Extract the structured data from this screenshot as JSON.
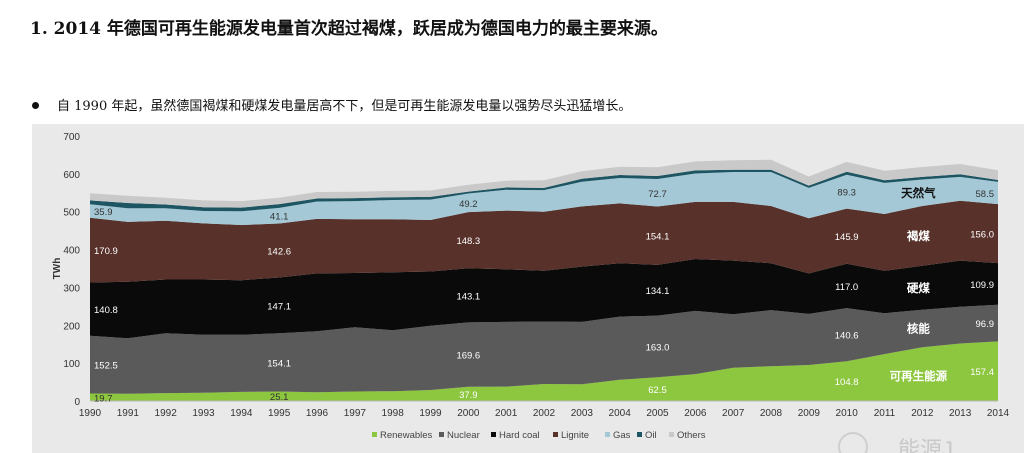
{
  "page": {
    "heading": "1. 2014 年德国可再生能源发电量首次超过褐煤，跃居成为德国电力的最主要来源。",
    "bullet": "自 1990 年起，虽然德国褐煤和硬煤发电量居高不下，但是可再生能源发电量以强势尽头迅猛增长。",
    "watermark": "能源J"
  },
  "chart_data": {
    "type": "area",
    "stacked": true,
    "ylabel": "TWh",
    "xlabel": "",
    "ylim": [
      0,
      700
    ],
    "yticks": [
      0,
      100,
      200,
      300,
      400,
      500,
      600,
      700
    ],
    "x": [
      "1990",
      "1991",
      "1992",
      "1993",
      "1994",
      "1995",
      "1996",
      "1997",
      "1998",
      "1999",
      "2000",
      "2001",
      "2002",
      "2003",
      "2004",
      "2005",
      "2006",
      "2007",
      "2008",
      "2009",
      "2010",
      "2011",
      "2012",
      "2013",
      "2014"
    ],
    "series": [
      {
        "name": "Renewables",
        "color": "#8dc63f",
        "values": [
          19.7,
          19,
          21,
          22,
          24,
          25.1,
          23,
          25,
          26,
          29,
          37.9,
          38,
          45,
          44,
          56,
          62.5,
          71,
          88,
          92,
          95,
          104.8,
          124,
          142,
          152,
          157.4
        ]
      },
      {
        "name": "Nuclear",
        "color": "#5a5a5a",
        "values": [
          152.5,
          147,
          158,
          153,
          151,
          154.1,
          161,
          170,
          161,
          170,
          169.6,
          171,
          165,
          165,
          167,
          163.0,
          167,
          141,
          148,
          135,
          140.6,
          108,
          99,
          97,
          96.9
        ]
      },
      {
        "name": "Hard coal",
        "color": "#0a0a0a",
        "values": [
          140.8,
          149,
          142,
          146,
          144,
          147.1,
          153,
          143,
          153,
          143,
          143.1,
          139,
          134,
          146,
          141,
          134.1,
          137,
          142,
          124,
          107,
          117.0,
          112,
          116,
          122,
          109.9
        ]
      },
      {
        "name": "Lignite",
        "color": "#57312a",
        "values": [
          170.9,
          158,
          155,
          148,
          146,
          142.6,
          144,
          142,
          140,
          136,
          148.3,
          155,
          156,
          159,
          158,
          154.1,
          151,
          155,
          151,
          146,
          145.9,
          150,
          158,
          158,
          156.0
        ]
      },
      {
        "name": "Gas",
        "color": "#a4c8d6",
        "values": [
          35.9,
          36,
          33,
          33,
          36,
          41.1,
          46,
          48,
          51,
          54,
          49.2,
          55,
          57,
          65,
          67,
          72.7,
          75,
          79,
          90,
          80,
          89.3,
          82,
          70,
          63,
          58.5
        ]
      },
      {
        "name": "Oil",
        "color": "#1e5563",
        "values": [
          10,
          14,
          10,
          10,
          10,
          10,
          8,
          8,
          7,
          7,
          5,
          6,
          6,
          8,
          8,
          8,
          8,
          6,
          6,
          6,
          8,
          7,
          7,
          7,
          5
        ]
      },
      {
        "name": "Others",
        "color": "#c9c9c9",
        "values": [
          19,
          19,
          18,
          18,
          17,
          17,
          17,
          17,
          17,
          17,
          18,
          18,
          20,
          20,
          22,
          23,
          24,
          25,
          26,
          24,
          26,
          25,
          26,
          27,
          26
        ]
      }
    ],
    "value_labels": [
      {
        "series": "Renewables",
        "year": "1990",
        "text": "19.7"
      },
      {
        "series": "Renewables",
        "year": "1995",
        "text": "25.1"
      },
      {
        "series": "Renewables",
        "year": "2000",
        "text": "37.9"
      },
      {
        "series": "Renewables",
        "year": "2005",
        "text": "62.5"
      },
      {
        "series": "Renewables",
        "year": "2010",
        "text": "104.8"
      },
      {
        "series": "Renewables",
        "year": "2014",
        "text": "157.4"
      },
      {
        "series": "Nuclear",
        "year": "1990",
        "text": "152.5"
      },
      {
        "series": "Nuclear",
        "year": "1995",
        "text": "154.1"
      },
      {
        "series": "Nuclear",
        "year": "2000",
        "text": "169.6"
      },
      {
        "series": "Nuclear",
        "year": "2005",
        "text": "163.0"
      },
      {
        "series": "Nuclear",
        "year": "2010",
        "text": "140.6"
      },
      {
        "series": "Nuclear",
        "year": "2014",
        "text": "96.9"
      },
      {
        "series": "Hard coal",
        "year": "1990",
        "text": "140.8"
      },
      {
        "series": "Hard coal",
        "year": "1995",
        "text": "147.1"
      },
      {
        "series": "Hard coal",
        "year": "2000",
        "text": "143.1"
      },
      {
        "series": "Hard coal",
        "year": "2005",
        "text": "134.1"
      },
      {
        "series": "Hard coal",
        "year": "2010",
        "text": "117.0"
      },
      {
        "series": "Hard coal",
        "year": "2014",
        "text": "109.9"
      },
      {
        "series": "Lignite",
        "year": "1990",
        "text": "170.9"
      },
      {
        "series": "Lignite",
        "year": "1995",
        "text": "142.6"
      },
      {
        "series": "Lignite",
        "year": "2000",
        "text": "148.3"
      },
      {
        "series": "Lignite",
        "year": "2005",
        "text": "154.1"
      },
      {
        "series": "Lignite",
        "year": "2010",
        "text": "145.9"
      },
      {
        "series": "Lignite",
        "year": "2014",
        "text": "156.0"
      },
      {
        "series": "Gas",
        "year": "1990",
        "text": "35.9"
      },
      {
        "series": "Gas",
        "year": "1995",
        "text": "41.1"
      },
      {
        "series": "Gas",
        "year": "2000",
        "text": "49.2"
      },
      {
        "series": "Gas",
        "year": "2005",
        "text": "72.7"
      },
      {
        "series": "Gas",
        "year": "2010",
        "text": "89.3"
      },
      {
        "series": "Gas",
        "year": "2014",
        "text": "58.5"
      }
    ],
    "annotations": [
      {
        "series": "Renewables",
        "year": "2012",
        "text": "可再生能源"
      },
      {
        "series": "Nuclear",
        "year": "2012",
        "text": "核能"
      },
      {
        "series": "Hard coal",
        "year": "2012",
        "text": "硬煤"
      },
      {
        "series": "Lignite",
        "year": "2012",
        "text": "褐煤"
      },
      {
        "series": "Gas",
        "year": "2012",
        "text": "天然气"
      }
    ],
    "legend_position": "bottom-center"
  }
}
